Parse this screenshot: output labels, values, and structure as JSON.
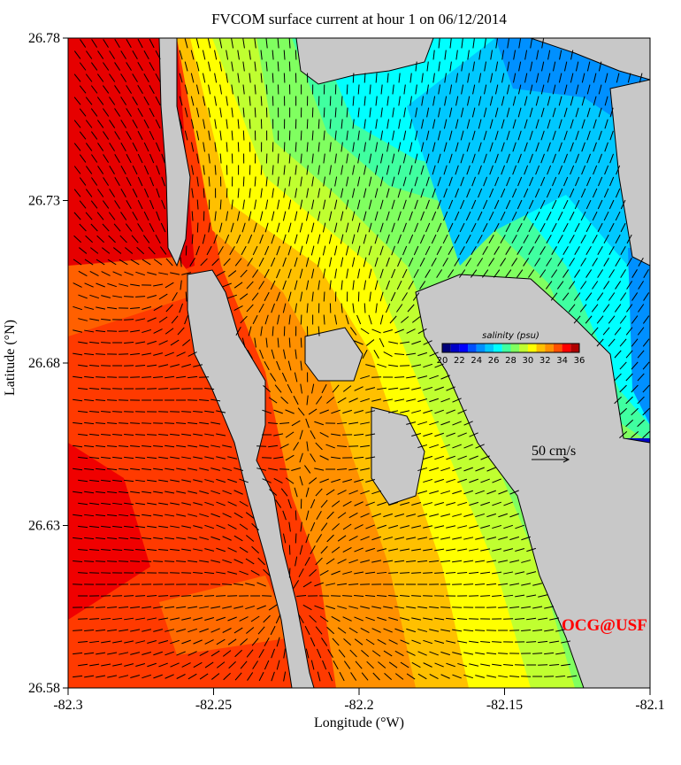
{
  "title": "FVCOM surface current at hour 1 on 06/12/2014",
  "chart_data": {
    "type": "map",
    "title": "FVCOM surface current at hour 1 on 06/12/2014",
    "xlabel": "Longitude (°W)",
    "ylabel": "Latitude (°N)",
    "xlim": [
      -82.3,
      -82.1
    ],
    "ylim": [
      26.58,
      26.78
    ],
    "xticks": [
      "-82.3",
      "-82.25",
      "-82.2",
      "-82.15",
      "-82.1"
    ],
    "yticks": [
      "26.58",
      "26.63",
      "26.68",
      "26.73",
      "26.78"
    ],
    "colorbar": {
      "label": "salinity (psu)",
      "range": [
        20,
        36
      ],
      "ticks": [
        "20",
        "22",
        "24",
        "26",
        "28",
        "30",
        "32",
        "34",
        "36"
      ],
      "colors": [
        "#00007a",
        "#0000c8",
        "#0000ff",
        "#0050ff",
        "#0090ff",
        "#00c8ff",
        "#00ffff",
        "#40ffa0",
        "#80ff60",
        "#c0ff30",
        "#ffff00",
        "#ffc000",
        "#ff9000",
        "#ff5000",
        "#ff0000",
        "#b00000"
      ]
    },
    "scale_vector": "50 cm/s",
    "land_color": "#c8c8c8",
    "watermark": "OCG@USF"
  }
}
